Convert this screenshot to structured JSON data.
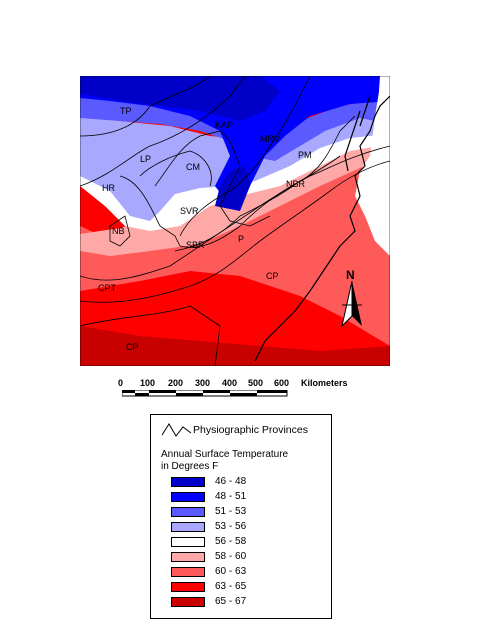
{
  "map": {
    "province_labels": [
      "TP",
      "LP",
      "KAP",
      "MRV",
      "CM",
      "PM",
      "HR",
      "NBR",
      "SVR",
      "NB",
      "SBR",
      "P",
      "CP",
      "CPT",
      "CP"
    ]
  },
  "compass": {
    "label": "N"
  },
  "scale": {
    "ticks": [
      "0",
      "100",
      "200",
      "300",
      "400",
      "500",
      "600"
    ],
    "unit": "Kilometers"
  },
  "legend": {
    "provinces_label": "Physiographic Provinces",
    "temp_title_line1": "Annual Surface Temperature",
    "temp_title_line2": "in Degrees F",
    "classes": [
      {
        "range": "46 - 48",
        "color": "#0000c8"
      },
      {
        "range": "48 - 51",
        "color": "#0000ff"
      },
      {
        "range": "51 - 53",
        "color": "#5a5aff"
      },
      {
        "range": "53 - 56",
        "color": "#a8a8ff"
      },
      {
        "range": "56 - 58",
        "color": "#ffffff"
      },
      {
        "range": "58 - 60",
        "color": "#ffa8a8"
      },
      {
        "range": "60 - 63",
        "color": "#ff5a5a"
      },
      {
        "range": "63 - 65",
        "color": "#ff0000"
      },
      {
        "range": "65 - 67",
        "color": "#c80000"
      }
    ]
  }
}
